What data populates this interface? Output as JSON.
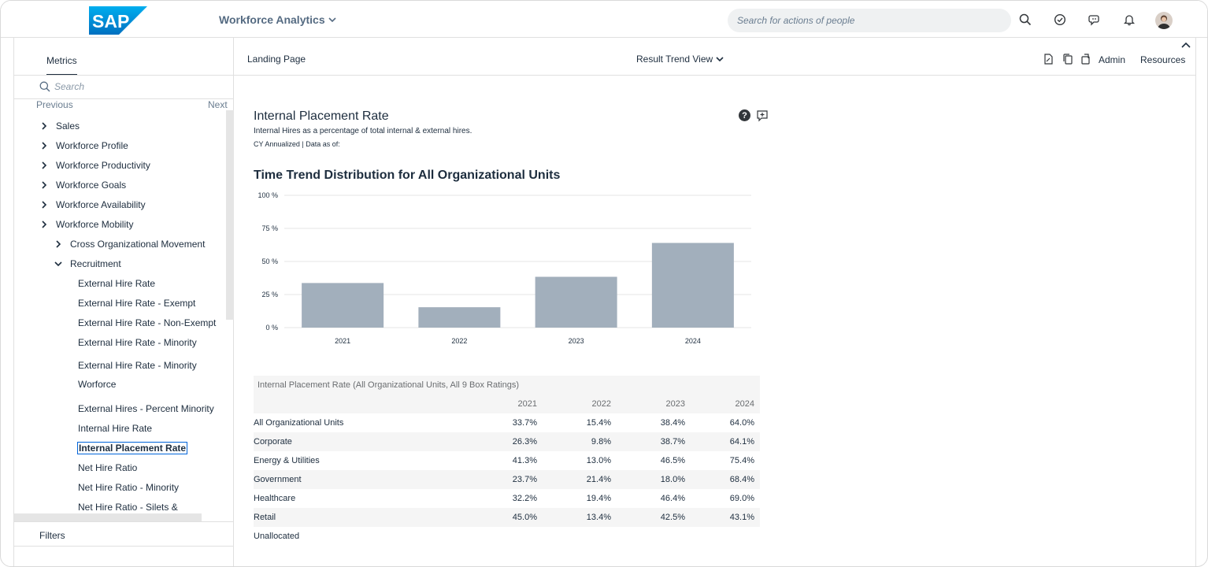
{
  "header": {
    "product_name": "Workforce Analytics",
    "search_placeholder": "Search for actions of people",
    "brand_color": "#0a6ed1"
  },
  "left_panel": {
    "tab_label": "Metrics",
    "search_placeholder": "Search",
    "previous_label": "Previous",
    "next_label": "Next",
    "items": [
      {
        "label": "Sales",
        "level": 0,
        "chevron": "right"
      },
      {
        "label": "Workforce Profile",
        "level": 0,
        "chevron": "right"
      },
      {
        "label": "Workforce Productivity",
        "level": 0,
        "chevron": "right"
      },
      {
        "label": "Workforce Goals",
        "level": 0,
        "chevron": "right"
      },
      {
        "label": "Workforce Availability",
        "level": 0,
        "chevron": "right"
      },
      {
        "label": "Workforce Mobility",
        "level": 0,
        "chevron": "right"
      },
      {
        "label": "Cross Organizational Movement",
        "level": 1,
        "chevron": "right"
      },
      {
        "label": "Recruitment",
        "level": 1,
        "chevron": "down"
      },
      {
        "label": "External Hire Rate",
        "level": 2
      },
      {
        "label": "External Hire Rate - Exempt",
        "level": 2
      },
      {
        "label": "External Hire Rate - Non-Exempt",
        "level": 2
      },
      {
        "label": "External Hire Rate - Minority",
        "level": 2
      },
      {
        "label": "External Hire Rate - Minority",
        "level": 2
      },
      {
        "label": "Worforce",
        "level": 2
      },
      {
        "label": "External Hires - Percent Minority",
        "level": 2
      },
      {
        "label": "Internal Hire Rate",
        "level": 2
      },
      {
        "label": "Internal Placement Rate",
        "level": 2,
        "selected": true
      },
      {
        "label": "Net Hire Ratio",
        "level": 2
      },
      {
        "label": "Net Hire Ratio - Minority",
        "level": 2
      },
      {
        "label": "Net Hire Ratio - Silets &",
        "level": 2
      }
    ],
    "filters_label": "Filters"
  },
  "toolbar": {
    "landing_label": "Landing Page",
    "view_label": "Result Trend View",
    "admin_label": "Admin",
    "resources_label": "Resources"
  },
  "card": {
    "title": "Internal Placement Rate",
    "description": "Internal Hires as a percentage of total internal & external hires.",
    "meta": "CY Annualized | Data as of:",
    "help_symbol": "?"
  },
  "chart_data": {
    "type": "bar",
    "title": "Time Trend Distribution for All Organizational Units",
    "categories": [
      "2021",
      "2022",
      "2023",
      "2024"
    ],
    "values": [
      33.7,
      15.4,
      38.4,
      64.0
    ],
    "ylim": [
      0,
      100
    ],
    "yticks": [
      "0 %",
      "25 %",
      "50 %",
      "75 %",
      "100 %"
    ],
    "ytick_values": [
      0,
      25,
      50,
      75,
      100
    ],
    "bar_color": "#a2afbc",
    "grid": true
  },
  "table": {
    "caption": "Internal Placement Rate (All Organizational Units, All 9 Box Ratings)",
    "columns": [
      "2021",
      "2022",
      "2023",
      "2024"
    ],
    "rows": [
      {
        "label": "All Organizational Units",
        "values": [
          "33.7%",
          "15.4%",
          "38.4%",
          "64.0%"
        ]
      },
      {
        "label": "Corporate",
        "values": [
          "26.3%",
          "9.8%",
          "38.7%",
          "64.1%"
        ]
      },
      {
        "label": "Energy & Utilities",
        "values": [
          "41.3%",
          "13.0%",
          "46.5%",
          "75.4%"
        ]
      },
      {
        "label": "Government",
        "values": [
          "23.7%",
          "21.4%",
          "18.0%",
          "68.4%"
        ]
      },
      {
        "label": "Healthcare",
        "values": [
          "32.2%",
          "19.4%",
          "46.4%",
          "69.0%"
        ]
      },
      {
        "label": "Retail",
        "values": [
          "45.0%",
          "13.4%",
          "42.5%",
          "43.1%"
        ]
      },
      {
        "label": "Unallocated",
        "values": [
          "",
          "",
          "",
          ""
        ]
      }
    ]
  }
}
